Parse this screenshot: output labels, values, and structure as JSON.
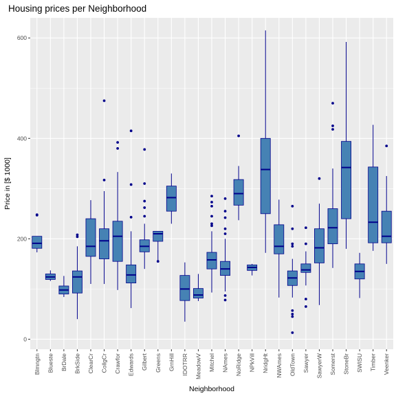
{
  "chart_data": {
    "type": "boxplot",
    "title": "Housing prices per Neighborhood",
    "xlabel": "Neighborhood",
    "ylabel": "Price in [$ 1000]",
    "ylim": [
      -20,
      640
    ],
    "yticks": [
      0,
      200,
      400,
      600
    ],
    "grid": true,
    "legend": "none",
    "colors": {
      "panel": "#ebebeb",
      "grid": "#ffffff",
      "box_fill": "#4682b4",
      "box_line": "#00008b",
      "outlier": "#00008b"
    },
    "categories": [
      "Blmngtn",
      "Blueste",
      "BrDale",
      "BrkSide",
      "ClearCr",
      "CollgCr",
      "Crawfor",
      "Edwards",
      "Gilbert",
      "Greens",
      "GrnHill",
      "IDOTRR",
      "MeadowV",
      "Mitchel",
      "NAmes",
      "NoRidge",
      "NPkVill",
      "NridgHt",
      "NWAmes",
      "OldTown",
      "Sawyer",
      "SawyerW",
      "Somerst",
      "StoneBr",
      "SWISU",
      "Timber",
      "Veenker"
    ],
    "boxes": [
      {
        "name": "Blmngtn",
        "whisker_low": 173,
        "q1": 181,
        "median": 191,
        "q3": 205,
        "whisker_high": 205,
        "outliers": [
          247,
          248
        ]
      },
      {
        "name": "Blueste",
        "whisker_low": 116,
        "q1": 119,
        "median": 124,
        "q3": 130,
        "whisker_high": 137,
        "outliers": []
      },
      {
        "name": "BrDale",
        "whisker_low": 84,
        "q1": 90,
        "median": 98,
        "q3": 106,
        "whisker_high": 126,
        "outliers": []
      },
      {
        "name": "BrkSide",
        "whisker_low": 40,
        "q1": 92,
        "median": 124,
        "q3": 136,
        "whisker_high": 185,
        "outliers": [
          204,
          208
        ]
      },
      {
        "name": "ClearCr",
        "whisker_low": 110,
        "q1": 165,
        "median": 185,
        "q3": 240,
        "whisker_high": 277,
        "outliers": []
      },
      {
        "name": "CollgCr",
        "whisker_low": 110,
        "q1": 160,
        "median": 196,
        "q3": 220,
        "whisker_high": 295,
        "outliers": [
          317,
          475
        ]
      },
      {
        "name": "Crawfor",
        "whisker_low": 98,
        "q1": 155,
        "median": 205,
        "q3": 235,
        "whisker_high": 333,
        "outliers": [
          380,
          392
        ]
      },
      {
        "name": "Edwards",
        "whisker_low": 62,
        "q1": 112,
        "median": 128,
        "q3": 148,
        "whisker_high": 215,
        "outliers": [
          243,
          308,
          415
        ]
      },
      {
        "name": "Gilbert",
        "whisker_low": 140,
        "q1": 174,
        "median": 185,
        "q3": 198,
        "whisker_high": 230,
        "outliers": [
          245,
          262,
          275,
          310,
          378
        ]
      },
      {
        "name": "Greens",
        "whisker_low": 155,
        "q1": 195,
        "median": 210,
        "q3": 215,
        "whisker_high": 215,
        "outliers": [
          155
        ]
      },
      {
        "name": "GrnHill",
        "whisker_low": 230,
        "q1": 255,
        "median": 282,
        "q3": 305,
        "whisker_high": 330,
        "outliers": []
      },
      {
        "name": "IDOTRR",
        "whisker_low": 35,
        "q1": 77,
        "median": 100,
        "q3": 127,
        "whisker_high": 153,
        "outliers": []
      },
      {
        "name": "MeadowV",
        "whisker_low": 76,
        "q1": 82,
        "median": 88,
        "q3": 101,
        "whisker_high": 130,
        "outliers": []
      },
      {
        "name": "Mitchel",
        "whisker_low": 93,
        "q1": 140,
        "median": 158,
        "q3": 173,
        "whisker_high": 215,
        "outliers": [
          226,
          230,
          245,
          265,
          273,
          285
        ]
      },
      {
        "name": "NAmes",
        "whisker_low": 95,
        "q1": 127,
        "median": 140,
        "q3": 155,
        "whisker_high": 200,
        "outliers": [
          78,
          87,
          210,
          220,
          242,
          255,
          280
        ]
      },
      {
        "name": "NoRidge",
        "whisker_low": 237,
        "q1": 267,
        "median": 290,
        "q3": 318,
        "whisker_high": 345,
        "outliers": [
          405
        ]
      },
      {
        "name": "NPkVill",
        "whisker_low": 127,
        "q1": 137,
        "median": 143,
        "q3": 148,
        "whisker_high": 150,
        "outliers": []
      },
      {
        "name": "NridgHt",
        "whisker_low": 172,
        "q1": 250,
        "median": 338,
        "q3": 400,
        "whisker_high": 615,
        "outliers": []
      },
      {
        "name": "NWAmes",
        "whisker_low": 83,
        "q1": 170,
        "median": 185,
        "q3": 228,
        "whisker_high": 278,
        "outliers": []
      },
      {
        "name": "OldTown",
        "whisker_low": 83,
        "q1": 107,
        "median": 122,
        "q3": 136,
        "whisker_high": 160,
        "outliers": [
          13,
          45,
          50,
          57,
          185,
          190,
          220,
          265
        ]
      },
      {
        "name": "Sawyer",
        "whisker_low": 107,
        "q1": 133,
        "median": 138,
        "q3": 150,
        "whisker_high": 175,
        "outliers": [
          65,
          80,
          190,
          222
        ]
      },
      {
        "name": "SawyerW",
        "whisker_low": 68,
        "q1": 152,
        "median": 182,
        "q3": 220,
        "whisker_high": 270,
        "outliers": [
          320
        ]
      },
      {
        "name": "Somerst",
        "whisker_low": 142,
        "q1": 190,
        "median": 222,
        "q3": 260,
        "whisker_high": 340,
        "outliers": [
          418,
          425,
          470
        ]
      },
      {
        "name": "StoneBr",
        "whisker_low": 180,
        "q1": 240,
        "median": 342,
        "q3": 394,
        "whisker_high": 592,
        "outliers": []
      },
      {
        "name": "SWISU",
        "whisker_low": 82,
        "q1": 120,
        "median": 135,
        "q3": 150,
        "whisker_high": 172,
        "outliers": []
      },
      {
        "name": "Timber",
        "whisker_low": 176,
        "q1": 192,
        "median": 233,
        "q3": 343,
        "whisker_high": 427,
        "outliers": []
      },
      {
        "name": "Veenker",
        "whisker_low": 150,
        "q1": 192,
        "median": 205,
        "q3": 255,
        "whisker_high": 325,
        "outliers": [
          385
        ]
      }
    ]
  }
}
